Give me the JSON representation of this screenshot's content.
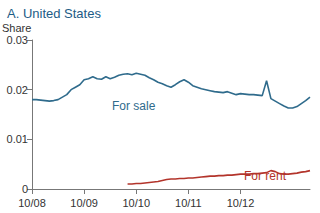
{
  "chart_data": {
    "type": "line",
    "title": "A. United States",
    "ylabel": "Share",
    "categories": [
      "10/08",
      null,
      null,
      null,
      null,
      null,
      null,
      null,
      null,
      null,
      null,
      null,
      "10/09",
      null,
      null,
      null,
      null,
      null,
      null,
      null,
      null,
      null,
      null,
      null,
      "10/10",
      null,
      null,
      null,
      null,
      null,
      null,
      null,
      null,
      null,
      null,
      null,
      "10/11",
      null,
      null,
      null,
      null,
      null,
      null,
      null,
      null,
      null,
      null,
      null,
      "10/12",
      null,
      null,
      null,
      null,
      null,
      null,
      null,
      null,
      null,
      null,
      null,
      null,
      null,
      null,
      null,
      null
    ],
    "series": [
      {
        "name": "For sale",
        "color": "#2f6b8c",
        "values": [
          0.018,
          0.018,
          0.0179,
          0.0178,
          0.0177,
          0.0178,
          0.018,
          0.0185,
          0.019,
          0.02,
          0.0205,
          0.021,
          0.022,
          0.0222,
          0.0226,
          0.0222,
          0.0221,
          0.0226,
          0.0222,
          0.0225,
          0.0229,
          0.0231,
          0.0232,
          0.023,
          0.0233,
          0.0231,
          0.0229,
          0.0224,
          0.022,
          0.0215,
          0.0212,
          0.0208,
          0.0205,
          0.021,
          0.0216,
          0.022,
          0.0215,
          0.0208,
          0.0205,
          0.0202,
          0.02,
          0.0198,
          0.0196,
          0.0195,
          0.0194,
          0.0196,
          0.0193,
          0.019,
          0.0192,
          0.0191,
          0.019,
          0.019,
          0.0189,
          0.0188,
          0.0218,
          0.0182,
          0.0177,
          0.0172,
          0.0167,
          0.0163,
          0.0163,
          0.0166,
          0.0172,
          0.0178,
          0.0185
        ]
      },
      {
        "name": "For rent",
        "color": "#b3342b",
        "values": [
          null,
          null,
          null,
          null,
          null,
          null,
          null,
          null,
          null,
          null,
          null,
          null,
          null,
          null,
          null,
          null,
          null,
          null,
          null,
          null,
          null,
          null,
          0.001,
          0.001,
          0.0011,
          0.0011,
          0.0012,
          0.0013,
          0.0014,
          0.0015,
          0.0017,
          0.0019,
          0.002,
          0.002,
          0.0021,
          0.0021,
          0.0022,
          0.0022,
          0.0023,
          0.0024,
          0.0025,
          0.0026,
          0.0026,
          0.0027,
          0.0027,
          0.0028,
          0.0028,
          0.0029,
          0.003,
          0.003,
          0.003,
          0.0031,
          0.0031,
          0.0032,
          0.0033,
          0.0037,
          0.0035,
          0.0031,
          0.003,
          0.003,
          0.0031,
          0.0032,
          0.0034,
          0.0035,
          0.0037
        ]
      }
    ],
    "ylim": [
      0,
      0.03
    ],
    "yticks": [
      0,
      0.01,
      0.02,
      0.03
    ],
    "grid": false
  }
}
